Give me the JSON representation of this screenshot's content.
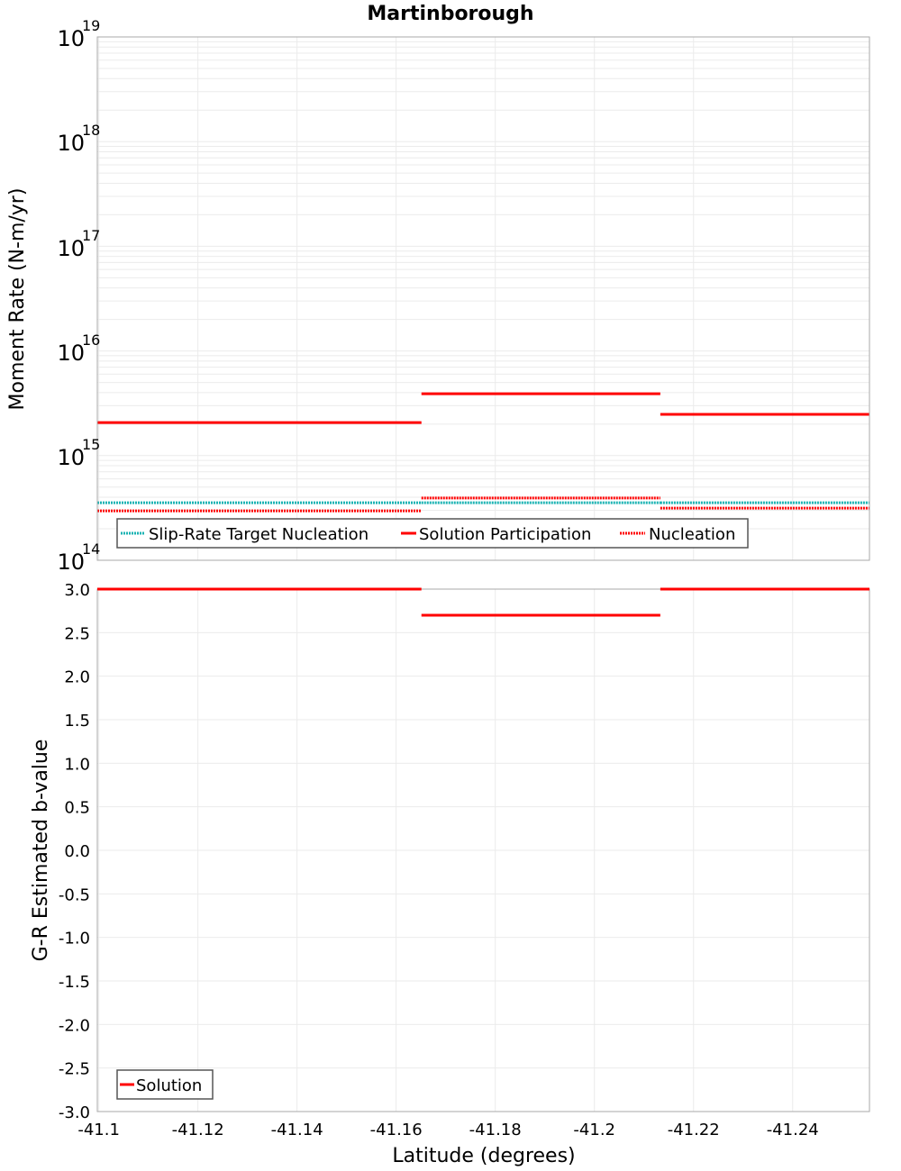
{
  "title": "Martinborough",
  "colors": {
    "solution": "#ff0000",
    "slip_rate_target": "#1ab3b3",
    "grid": "#ebebeb",
    "frame": "#aaaaaa"
  },
  "top_plot": {
    "ylabel": "Moment Rate (N-m/yr)",
    "y_ticks": [
      {
        "base": "10",
        "exp": "19"
      },
      {
        "base": "10",
        "exp": "18"
      },
      {
        "base": "10",
        "exp": "17"
      },
      {
        "base": "10",
        "exp": "16"
      },
      {
        "base": "10",
        "exp": "15"
      },
      {
        "base": "10",
        "exp": "14"
      }
    ],
    "legend": [
      {
        "label": "Slip-Rate Target Nucleation"
      },
      {
        "label": "Solution Participation"
      },
      {
        "label": "Nucleation"
      }
    ]
  },
  "bottom_plot": {
    "ylabel": "G-R Estimated b-value",
    "xlabel": "Latitude (degrees)",
    "y_ticks": [
      "3.0",
      "2.5",
      "2.0",
      "1.5",
      "1.0",
      "0.5",
      "0.0",
      "-0.5",
      "-1.0",
      "-1.5",
      "-2.0",
      "-2.5",
      "-3.0"
    ],
    "x_ticks": [
      "-41.1",
      "-41.12",
      "-41.14",
      "-41.16",
      "-41.18",
      "-41.2",
      "-41.22",
      "-41.24"
    ],
    "legend": [
      {
        "label": "Solution"
      }
    ]
  },
  "chart_data": [
    {
      "type": "line",
      "title": "Martinborough",
      "xlabel": "Latitude (degrees)",
      "ylabel": "Moment Rate (N-m/yr)",
      "yscale": "log",
      "ylim": [
        100000000000000.0,
        1e+19
      ],
      "xlim": [
        -41.0997,
        -41.2555
      ],
      "grid": true,
      "legend_position": "bottom-left inside",
      "series": [
        {
          "name": "Slip-Rate Target Nucleation",
          "style": "dotted",
          "color": "#1ab3b3",
          "segments": [
            {
              "x": [
                -41.0997,
                -41.1651
              ],
              "y": 355000000000000.0
            },
            {
              "x": [
                -41.1651,
                -41.2133
              ],
              "y": 355000000000000.0
            },
            {
              "x": [
                -41.2133,
                -41.2555
              ],
              "y": 355000000000000.0
            }
          ]
        },
        {
          "name": "Solution Participation",
          "style": "solid",
          "color": "#ff0000",
          "segments": [
            {
              "x": [
                -41.0997,
                -41.1651
              ],
              "y": 2070000000000000.0
            },
            {
              "x": [
                -41.1651,
                -41.2133
              ],
              "y": 3900000000000000.0
            },
            {
              "x": [
                -41.2133,
                -41.2555
              ],
              "y": 2480000000000000.0
            }
          ]
        },
        {
          "name": "Nucleation",
          "style": "dotted",
          "color": "#ff0000",
          "segments": [
            {
              "x": [
                -41.0997,
                -41.1651
              ],
              "y": 297000000000000.0
            },
            {
              "x": [
                -41.1651,
                -41.2133
              ],
              "y": 393000000000000.0
            },
            {
              "x": [
                -41.2133,
                -41.2555
              ],
              "y": 315000000000000.0
            }
          ]
        }
      ]
    },
    {
      "type": "line",
      "title": "",
      "xlabel": "Latitude (degrees)",
      "ylabel": "G-R Estimated b-value",
      "ylim": [
        -3.0,
        3.0
      ],
      "xlim": [
        -41.0997,
        -41.2555
      ],
      "x_ticks": [
        -41.1,
        -41.12,
        -41.14,
        -41.16,
        -41.18,
        -41.2,
        -41.22,
        -41.24
      ],
      "y_ticks": [
        3.0,
        2.5,
        2.0,
        1.5,
        1.0,
        0.5,
        0.0,
        -0.5,
        -1.0,
        -1.5,
        -2.0,
        -2.5,
        -3.0
      ],
      "grid": true,
      "legend_position": "bottom-left inside",
      "series": [
        {
          "name": "Solution",
          "style": "solid",
          "color": "#ff0000",
          "segments": [
            {
              "x": [
                -41.0997,
                -41.1651
              ],
              "y": 3.0
            },
            {
              "x": [
                -41.1651,
                -41.2133
              ],
              "y": 2.7
            },
            {
              "x": [
                -41.2133,
                -41.2555
              ],
              "y": 3.0
            }
          ]
        }
      ]
    }
  ]
}
